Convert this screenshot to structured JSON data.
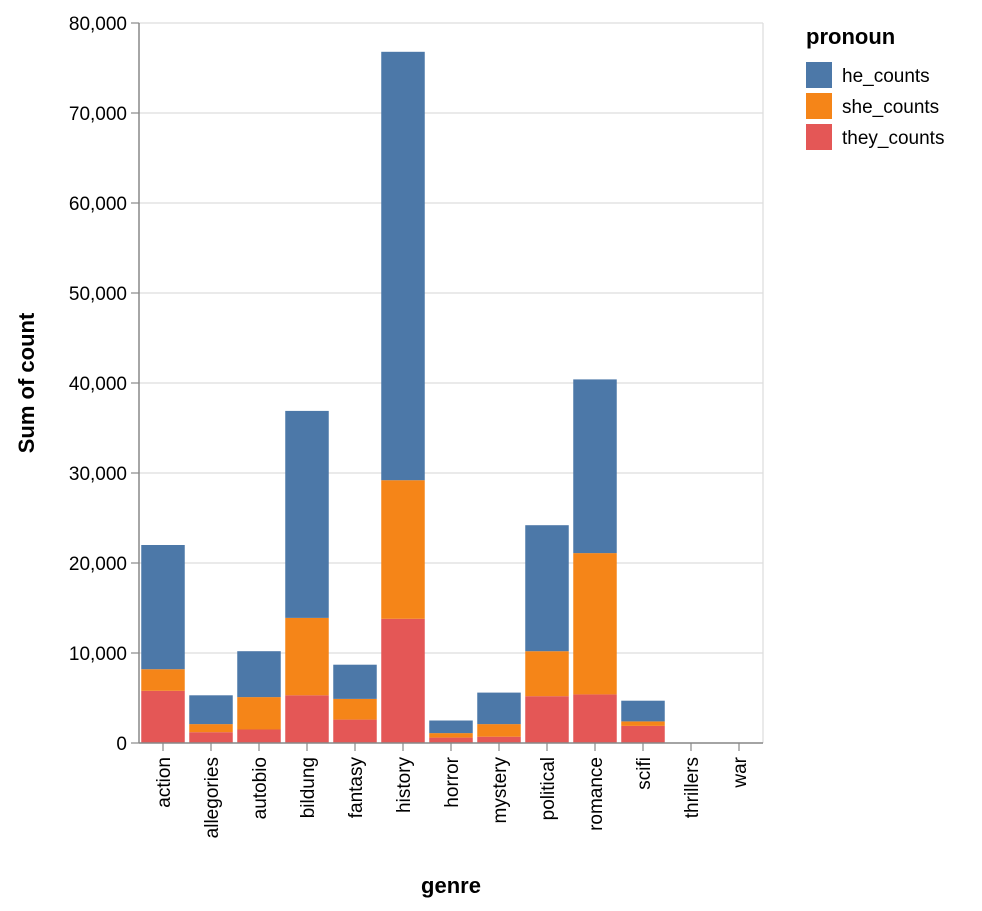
{
  "chart_data": {
    "type": "bar",
    "stacked": true,
    "categories": [
      "action",
      "allegories",
      "autobio",
      "bildung",
      "fantasy",
      "history",
      "horror",
      "mystery",
      "political",
      "romance",
      "scifi",
      "thrillers",
      "war"
    ],
    "series": [
      {
        "name": "they_counts",
        "color": "#e45756",
        "values": [
          5800,
          1200,
          1500,
          5300,
          2600,
          13800,
          600,
          700,
          5200,
          5400,
          1900,
          0,
          0
        ]
      },
      {
        "name": "she_counts",
        "color": "#f58518",
        "values": [
          2400,
          900,
          3600,
          8600,
          2300,
          15400,
          500,
          1400,
          5000,
          15700,
          500,
          0,
          0
        ]
      },
      {
        "name": "he_counts",
        "color": "#4c78a8",
        "values": [
          13800,
          3200,
          5100,
          23000,
          3800,
          47600,
          1400,
          3500,
          14000,
          19300,
          2300,
          0,
          0
        ]
      }
    ],
    "xlabel": "genre",
    "ylabel": "Sum of count",
    "ylim": [
      0,
      80000
    ],
    "yticks": [
      0,
      10000,
      20000,
      30000,
      40000,
      50000,
      60000,
      70000,
      80000
    ],
    "ytick_labels": [
      "0",
      "10,000",
      "20,000",
      "30,000",
      "40,000",
      "50,000",
      "60,000",
      "70,000",
      "80,000"
    ],
    "grid": true,
    "legend": {
      "title": "pronoun",
      "placement": "top-right",
      "order": [
        "he_counts",
        "she_counts",
        "they_counts"
      ]
    }
  }
}
